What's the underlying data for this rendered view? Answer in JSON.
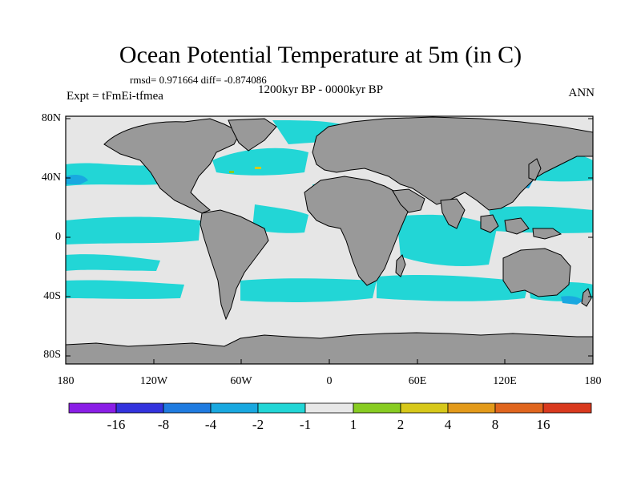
{
  "title": "Ocean Potential Temperature at 5m (in C)",
  "stats": "rmsd= 0.971664 diff= -0.874086",
  "experiment": "Expt = tFmEi-tfmea",
  "period": "1200kyr BP - 0000kyr BP",
  "season": "ANN",
  "y_axis_labels": [
    "80N",
    "40N",
    "0",
    "40S",
    "80S"
  ],
  "x_axis_labels": [
    "180",
    "120W",
    "60W",
    "0",
    "60E",
    "120E",
    "180"
  ],
  "colorbar": {
    "labels": [
      "-16",
      "-8",
      "-4",
      "-2",
      "-1",
      "1",
      "2",
      "4",
      "8",
      "16"
    ],
    "colors": [
      "#8a1ee6",
      "#3333dd",
      "#1f7be0",
      "#19a8e0",
      "#22d6d6",
      "#e8e8e8",
      "#88cc22",
      "#d7c81a",
      "#e39a1a",
      "#e0651e",
      "#d9391e"
    ]
  },
  "colors": {
    "land": "#999999",
    "neutral_ocean": "#e6e6e6",
    "cool_anomaly": "#22d6d6",
    "moderate_cool": "#19a8e0",
    "warm_anomaly": "#88cc22"
  }
}
